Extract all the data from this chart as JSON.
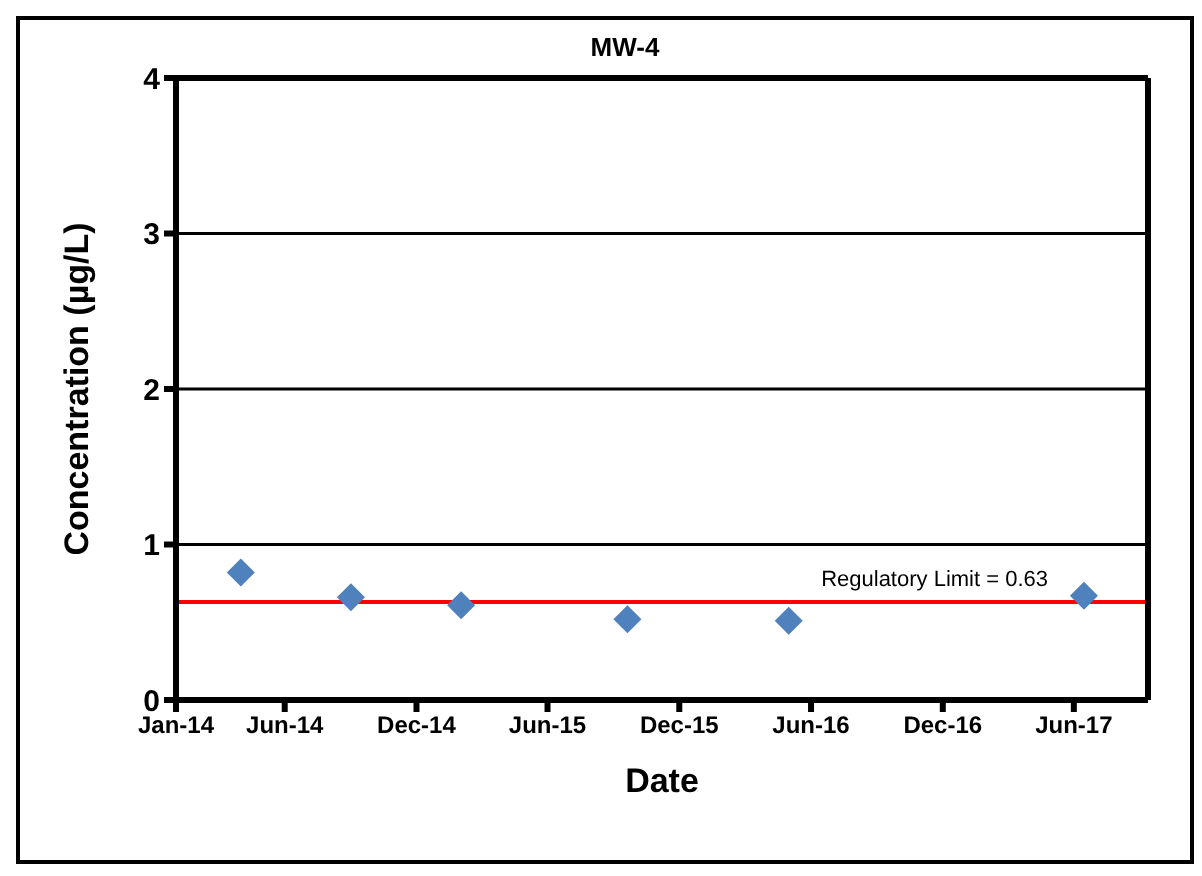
{
  "chart_data": {
    "type": "scatter",
    "title": "MW-4",
    "xlabel": "Date",
    "ylabel": "Concentration (µg/L)",
    "x": [
      "2014-04-01",
      "2014-09-01",
      "2015-02-01",
      "2015-09-20",
      "2016-05-01",
      "2017-06-15"
    ],
    "series": [
      {
        "color": "#4f81bd",
        "values": [
          0.82,
          0.66,
          0.61,
          0.52,
          0.51,
          0.67
        ]
      }
    ],
    "marker": "diamond",
    "grid": "y",
    "legend": false,
    "xlim": [
      "2014-01-01",
      "2017-09-12"
    ],
    "xticks": [
      {
        "value": "2014-01-01",
        "label": "Jan-14"
      },
      {
        "value": "2014-06-01",
        "label": "Jun-14"
      },
      {
        "value": "2014-12-01",
        "label": "Dec-14"
      },
      {
        "value": "2015-06-01",
        "label": "Jun-15"
      },
      {
        "value": "2015-12-01",
        "label": "Dec-15"
      },
      {
        "value": "2016-06-01",
        "label": "Jun-16"
      },
      {
        "value": "2016-12-01",
        "label": "Dec-16"
      },
      {
        "value": "2017-06-01",
        "label": "Jun-17"
      }
    ],
    "ylim": [
      0,
      4
    ],
    "yticks": [
      0,
      1,
      2,
      3,
      4
    ],
    "ref_lines": [
      {
        "axis": "y",
        "value": 0.63,
        "label": "Regulatory Limit = 0.63",
        "color": "#ff0000"
      }
    ]
  }
}
